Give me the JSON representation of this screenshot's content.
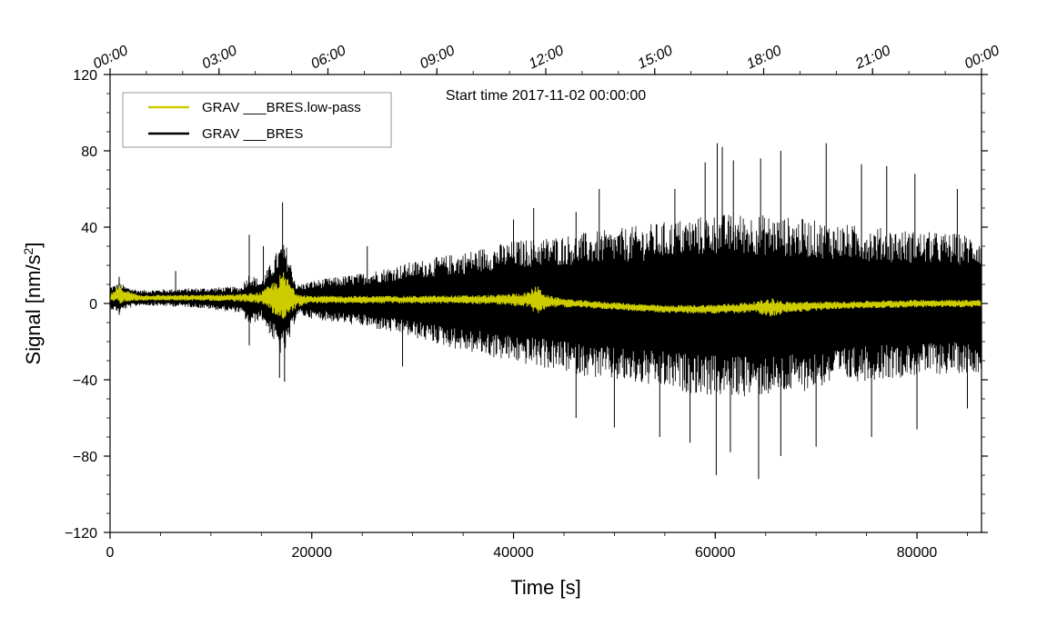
{
  "chart_data": {
    "type": "line",
    "title": "",
    "annotation": "Start time 2017-11-02 00:00:00",
    "xlabel": "Time [s]",
    "ylabel_main": "Signal [nm/s",
    "ylabel_sup": "2",
    "ylabel_tail": "]",
    "xlim": [
      0,
      86400
    ],
    "ylim": [
      -120,
      120
    ],
    "x_ticks": [
      0,
      20000,
      40000,
      60000,
      80000
    ],
    "x_tick_labels": [
      "0",
      "20000",
      "40000",
      "60000",
      "80000"
    ],
    "y_ticks": [
      -120,
      -80,
      -40,
      0,
      40,
      80,
      120
    ],
    "y_tick_labels": [
      "−120",
      "−80",
      "−40",
      "0",
      "40",
      "80",
      "120"
    ],
    "top_axis_ticks": [
      0,
      10800,
      21600,
      32400,
      43200,
      54000,
      64800,
      75600,
      86400
    ],
    "top_axis_labels": [
      "00:00",
      "03:00",
      "06:00",
      "09:00",
      "12:00",
      "15:00",
      "18:00",
      "21:00",
      "00:00"
    ],
    "legend": {
      "placement": "top-left"
    },
    "series": [
      {
        "name": "GRAV ___BRES.low-pass",
        "color": "#cccc00",
        "envelope_x": [
          0,
          500,
          1000,
          1500,
          3000,
          8000,
          13000,
          15000,
          16500,
          17200,
          18500,
          20000,
          25000,
          30000,
          38000,
          41500,
          42200,
          43500,
          46000,
          55000,
          60000,
          64000,
          65500,
          67000,
          72000,
          80000,
          86400
        ],
        "envelope_center": [
          3,
          4,
          5,
          4,
          3,
          3,
          3,
          3,
          3,
          3,
          2,
          2,
          2,
          2,
          2,
          2,
          2,
          1,
          0,
          -3,
          -3,
          -2,
          -2,
          -2,
          -1,
          0,
          0
        ],
        "envelope_amplitude": [
          2,
          3,
          5,
          3,
          1.5,
          1.5,
          2,
          3,
          10,
          14,
          4,
          2,
          2,
          2,
          2.5,
          4,
          8,
          3,
          2,
          2,
          2.5,
          3,
          5,
          3,
          2,
          2,
          2
        ]
      },
      {
        "name": "GRAV ___BRES",
        "color": "#000000",
        "envelope_x": [
          0,
          500,
          1000,
          1500,
          3000,
          8000,
          13000,
          13800,
          15000,
          16000,
          17000,
          17500,
          18500,
          20000,
          25000,
          30000,
          35000,
          40000,
          45000,
          50000,
          55000,
          60000,
          64000,
          68000,
          72000,
          76000,
          80000,
          86400
        ],
        "envelope_center": [
          3,
          3,
          3,
          3,
          3,
          3,
          2,
          2,
          2,
          2,
          2,
          2,
          2,
          2,
          2,
          2,
          1,
          1,
          0,
          -1,
          -1,
          -1,
          -1,
          -1,
          0,
          0,
          0,
          0
        ],
        "envelope_amplitude": [
          6,
          7,
          8,
          6,
          4,
          5,
          7,
          14,
          10,
          20,
          30,
          28,
          8,
          10,
          14,
          20,
          26,
          32,
          36,
          40,
          44,
          48,
          48,
          46,
          42,
          40,
          38,
          36
        ],
        "spike_max": [
          [
            900,
            14
          ],
          [
            6500,
            17
          ],
          [
            13800,
            36
          ],
          [
            15200,
            30
          ],
          [
            17100,
            53
          ],
          [
            25500,
            30
          ],
          [
            40000,
            44
          ],
          [
            42000,
            50
          ],
          [
            46200,
            48
          ],
          [
            48500,
            60
          ],
          [
            56000,
            60
          ],
          [
            59000,
            74
          ],
          [
            60200,
            84
          ],
          [
            60700,
            82
          ],
          [
            61800,
            75
          ],
          [
            64500,
            76
          ],
          [
            66500,
            80
          ],
          [
            71000,
            84
          ],
          [
            74500,
            73
          ],
          [
            77000,
            72
          ],
          [
            79800,
            68
          ],
          [
            84000,
            60
          ]
        ],
        "spike_min": [
          [
            900,
            -6
          ],
          [
            13800,
            -22
          ],
          [
            17300,
            -41
          ],
          [
            16800,
            -39
          ],
          [
            29000,
            -33
          ],
          [
            46200,
            -60
          ],
          [
            50000,
            -65
          ],
          [
            54500,
            -70
          ],
          [
            57500,
            -73
          ],
          [
            60100,
            -90
          ],
          [
            61500,
            -78
          ],
          [
            64300,
            -92
          ],
          [
            66500,
            -80
          ],
          [
            70000,
            -75
          ],
          [
            75500,
            -70
          ],
          [
            80000,
            -66
          ],
          [
            85000,
            -55
          ]
        ]
      }
    ]
  }
}
